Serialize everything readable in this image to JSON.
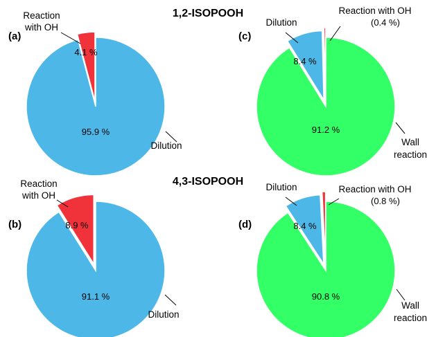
{
  "figure": {
    "titles": [
      "1,2-ISOPOOH",
      "4,3-ISOPOOH"
    ]
  },
  "colors": {
    "dilution": "#4DB8E8",
    "reaction_oh": "#F0333A",
    "wall_reaction": "#33FF66",
    "edge": "#ffffff",
    "leader": "#000000"
  },
  "chart_data": [
    {
      "type": "pie",
      "panel": "(a)",
      "title": "1,2-ISOPOOH",
      "slices": [
        {
          "name": "Reaction with OH",
          "value": 4.1,
          "label": "4.1 %",
          "color": "#F0333A",
          "exploded": true
        },
        {
          "name": "Dilution",
          "value": 95.9,
          "label": "95.9 %",
          "color": "#4DB8E8",
          "exploded": false
        }
      ]
    },
    {
      "type": "pie",
      "panel": "(b)",
      "title": "4,3-ISOPOOH",
      "slices": [
        {
          "name": "Reaction with OH",
          "value": 8.9,
          "label": "8.9 %",
          "color": "#F0333A",
          "exploded": true
        },
        {
          "name": "Dilution",
          "value": 91.1,
          "label": "91.1 %",
          "color": "#4DB8E8",
          "exploded": false
        }
      ]
    },
    {
      "type": "pie",
      "panel": "(c)",
      "title": "",
      "slices": [
        {
          "name": "Reaction with OH",
          "value": 0.4,
          "label": "(0.4 %)",
          "color": "#F0333A",
          "exploded": true
        },
        {
          "name": "Dilution",
          "value": 8.4,
          "label": "8.4 %",
          "color": "#4DB8E8",
          "exploded": true
        },
        {
          "name": "Wall reaction",
          "value": 91.2,
          "label": "91.2 %",
          "color": "#33FF66",
          "exploded": false
        }
      ]
    },
    {
      "type": "pie",
      "panel": "(d)",
      "title": "",
      "slices": [
        {
          "name": "Reaction with OH",
          "value": 0.8,
          "label": "(0.8 %)",
          "color": "#F0333A",
          "exploded": true
        },
        {
          "name": "Dilution",
          "value": 8.4,
          "label": "8.4 %",
          "color": "#4DB8E8",
          "exploded": true
        },
        {
          "name": "Wall reaction",
          "value": 90.8,
          "label": "90.8 %",
          "color": "#33FF66",
          "exploded": false
        }
      ]
    }
  ]
}
